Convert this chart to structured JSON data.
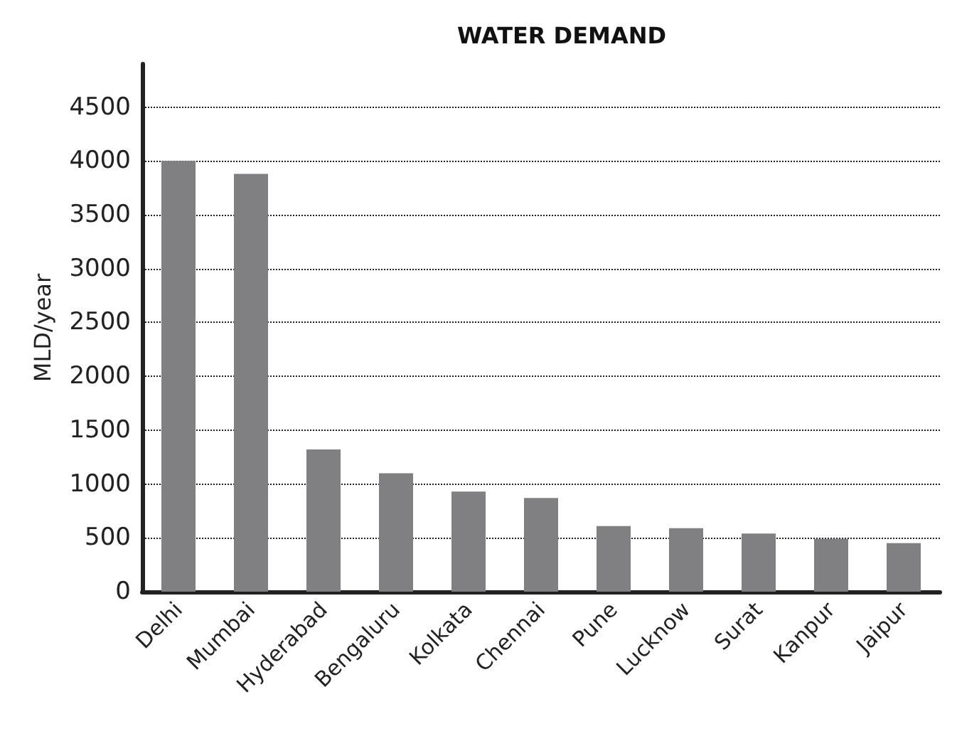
{
  "chart_data": {
    "type": "bar",
    "title": "WATER DEMAND",
    "ylabel": "MLD/year",
    "categories": [
      "Delhi",
      "Mumbai",
      "Hyderabad",
      "Bengaluru",
      "Kolkata",
      "Chennai",
      "Pune",
      "Lucknow",
      "Surat",
      "Kanpur",
      "Jaipur"
    ],
    "values": [
      4000,
      3880,
      1320,
      1100,
      930,
      870,
      610,
      590,
      540,
      490,
      450
    ],
    "color": "#808083",
    "ylim": [
      0,
      4900
    ],
    "yticks": [
      0,
      500,
      1000,
      1500,
      2000,
      2500,
      3000,
      3500,
      4000,
      4500
    ],
    "grid": "y"
  }
}
